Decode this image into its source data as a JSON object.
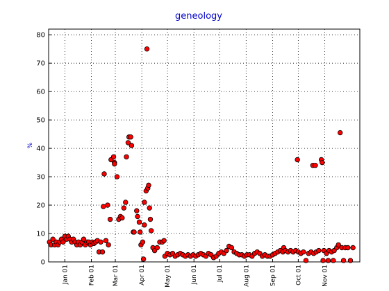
{
  "chart_data": {
    "type": "scatter",
    "title": "geneology",
    "y_label": "%",
    "color": "#ff0000",
    "edge_color": "#000000",
    "title_color": "#0000cc",
    "grid": true,
    "xlim": [
      -19,
      345
    ],
    "ylim": [
      0,
      82
    ],
    "yticks": [
      0,
      10,
      20,
      30,
      40,
      50,
      60,
      70,
      80
    ],
    "xticks": [
      {
        "value": 0,
        "label": "Jan 01"
      },
      {
        "value": 31,
        "label": "Feb 01"
      },
      {
        "value": 59,
        "label": "Mar 01"
      },
      {
        "value": 90,
        "label": "Apr 01"
      },
      {
        "value": 120,
        "label": "May 01"
      },
      {
        "value": 151,
        "label": "Jun 01"
      },
      {
        "value": 181,
        "label": "Jul 01"
      },
      {
        "value": 212,
        "label": "Aug 01"
      },
      {
        "value": 243,
        "label": "Sep 01"
      },
      {
        "value": 273,
        "label": "Oct 01"
      },
      {
        "value": 304,
        "label": "Nov 01"
      }
    ],
    "x": [
      -18,
      -16,
      -14,
      -12,
      -10,
      -8,
      -6,
      -4,
      -2,
      0,
      2,
      4,
      6,
      8,
      10,
      12,
      14,
      16,
      18,
      20,
      22,
      24,
      26,
      28,
      30,
      32,
      34,
      36,
      38,
      40,
      42,
      44,
      45,
      46,
      48,
      50,
      51,
      53,
      54,
      57,
      58,
      58,
      61,
      63,
      65,
      67,
      69,
      71,
      72,
      74,
      75,
      77,
      78,
      80,
      81,
      84,
      85,
      87,
      88,
      89,
      91,
      92,
      93,
      93,
      95,
      96,
      97,
      98,
      99,
      100,
      101,
      103,
      105,
      108,
      111,
      114,
      116,
      117,
      120,
      123,
      126,
      129,
      132,
      135,
      138,
      141,
      144,
      147,
      150,
      153,
      156,
      159,
      162,
      165,
      168,
      171,
      174,
      177,
      180,
      183,
      186,
      189,
      192,
      195,
      198,
      201,
      204,
      207,
      210,
      213,
      216,
      219,
      222,
      225,
      228,
      231,
      234,
      237,
      240,
      243,
      246,
      249,
      252,
      255,
      256,
      258,
      261,
      264,
      267,
      270,
      272,
      273,
      276,
      279,
      282,
      285,
      288,
      290,
      291,
      293,
      294,
      297,
      300,
      301,
      302,
      303,
      306,
      308,
      309,
      312,
      314,
      315,
      318,
      320,
      322,
      324,
      326,
      328,
      331,
      334,
      337
    ],
    "values": [
      7,
      6,
      8,
      6,
      7,
      6,
      7,
      8,
      7,
      9,
      8,
      9,
      8,
      7,
      8,
      7,
      6,
      7,
      6,
      7,
      8,
      6,
      7,
      7,
      6,
      7,
      6.5,
      7,
      7.5,
      3.5,
      7,
      3.5,
      19.5,
      31,
      7.5,
      20,
      6,
      15,
      36,
      37,
      35,
      34.5,
      30,
      15,
      16,
      15.5,
      19,
      21,
      37,
      42,
      44,
      44,
      41,
      10.5,
      10.5,
      18,
      16,
      14,
      10.5,
      6,
      7,
      1,
      13,
      21,
      25,
      75,
      26,
      27,
      19,
      15,
      11,
      5,
      4,
      5,
      7,
      7,
      7.5,
      2,
      3,
      2.5,
      3,
      2,
      2.5,
      3,
      2.5,
      2,
      2.5,
      2,
      2.5,
      2,
      2.5,
      3,
      2.5,
      2,
      3,
      2.5,
      1.5,
      2,
      3,
      3.5,
      3,
      4,
      5.5,
      5,
      3.5,
      3,
      2.5,
      2.5,
      2,
      2.5,
      2.5,
      2,
      3,
      3.5,
      3,
      2,
      2.5,
      2,
      2,
      2.5,
      3,
      3.5,
      4,
      3.5,
      5,
      4,
      3.5,
      4,
      3.5,
      4,
      36,
      3.5,
      3,
      3.5,
      0.5,
      3,
      3.5,
      34,
      3,
      34,
      3.5,
      4,
      36,
      35,
      0.5,
      4,
      3,
      0.5,
      4,
      3.5,
      0.5,
      4,
      5,
      6,
      45.5,
      5,
      0.5,
      5,
      5,
      0.5,
      5
    ]
  }
}
